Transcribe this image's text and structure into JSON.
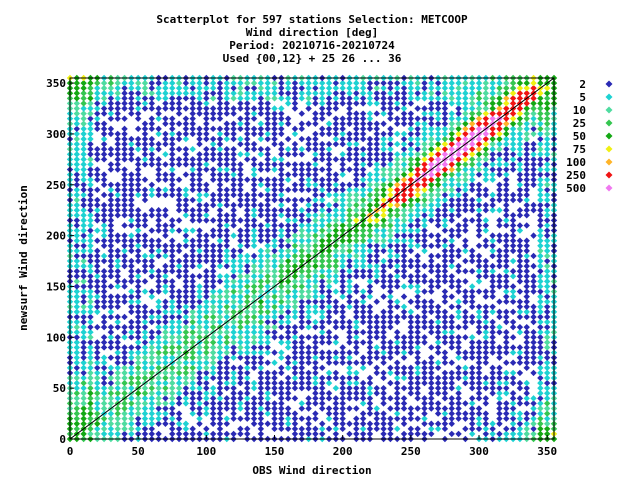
{
  "chart_data": {
    "type": "heatmap",
    "title_lines": [
      "Scatterplot for  597 stations Selection: METCOOP",
      "Wind direction [deg]",
      "Period: 20210716-20210724",
      "Used {00,12} + 25 26 ... 36"
    ],
    "xlabel": "OBS Wind direction",
    "ylabel": "newsurf Wind direction",
    "xlim": [
      0,
      355
    ],
    "ylim": [
      0,
      355
    ],
    "x_ticks": [
      0,
      50,
      100,
      150,
      200,
      250,
      300,
      350
    ],
    "y_ticks": [
      0,
      50,
      100,
      150,
      200,
      250,
      300,
      350
    ],
    "bin_width": 5,
    "diagonal": true,
    "legend_placement": "right",
    "legend": [
      {
        "label": "2",
        "color": "#2a2ab4"
      },
      {
        "label": "5",
        "color": "#1ed2d2"
      },
      {
        "label": "10",
        "color": "#4fdca0"
      },
      {
        "label": "25",
        "color": "#35c650"
      },
      {
        "label": "50",
        "color": "#14a814"
      },
      {
        "label": "75",
        "color": "#f0f014"
      },
      {
        "label": "100",
        "color": "#ffb428"
      },
      {
        "label": "250",
        "color": "#f01414"
      },
      {
        "label": "500",
        "color": "#f078f0"
      }
    ]
  }
}
